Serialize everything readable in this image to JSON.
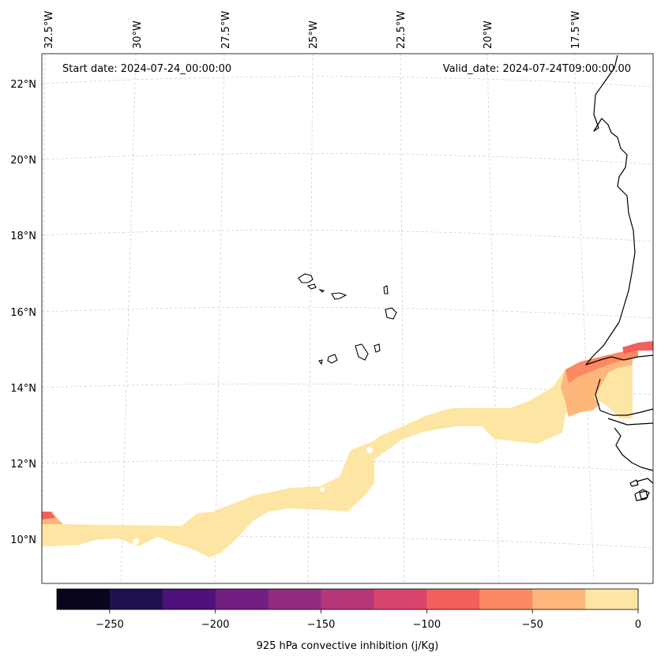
{
  "header": {
    "start_date": "Start date: 2024-07-24_00:00:00",
    "valid_date": "Valid_date: 2024-07-24T09:00:00.00"
  },
  "map": {
    "longitude_labels": [
      "32.5°W",
      "30°W",
      "27.5°W",
      "25°W",
      "22.5°W",
      "20°W",
      "17.5°W"
    ],
    "latitude_labels": [
      "22°N",
      "20°N",
      "18°N",
      "16°N",
      "14°N",
      "12°N",
      "10°N"
    ],
    "features": [
      "cape-verde-islands",
      "west-africa-coastline"
    ]
  },
  "colorbar": {
    "label": "925 hPa convective inhibition (j/Kg)",
    "ticks": [
      "−250",
      "−200",
      "−150",
      "−100",
      "−50",
      "0"
    ],
    "levels": [
      -275,
      -250,
      -225,
      -200,
      -175,
      -150,
      -125,
      -100,
      -75,
      -50,
      -25,
      0
    ],
    "colors": [
      "#07061c",
      "#221150",
      "#4f117b",
      "#721f81",
      "#932b80",
      "#b6377a",
      "#d8456c",
      "#f1605d",
      "#fc8961",
      "#feb67a",
      "#fde6a4"
    ]
  }
}
